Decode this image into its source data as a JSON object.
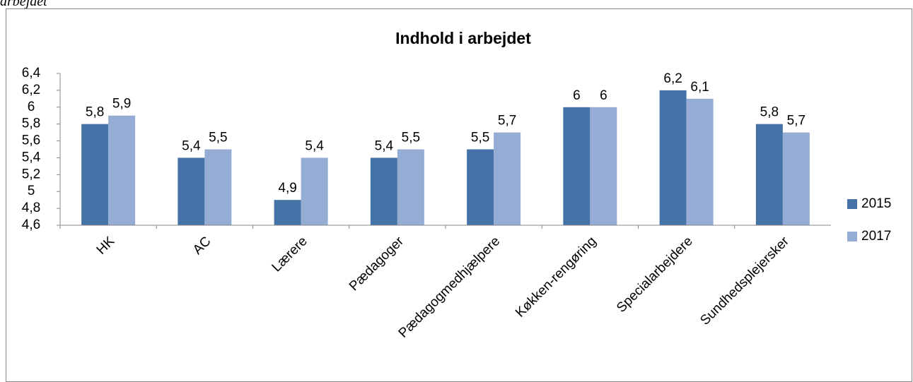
{
  "caption": "arbejdet",
  "chart_data": {
    "type": "bar",
    "title": "Indhold i arbejdet",
    "categories": [
      "HK",
      "AC",
      "Lærere",
      "Pædagoger",
      "Pædagogmedhjælpere",
      "Køkken-rengøring",
      "Specialarbejdere",
      "Sundhedsplejersker"
    ],
    "series": [
      {
        "name": "2015",
        "color": "#4572a7",
        "values": [
          5.8,
          5.4,
          4.9,
          5.4,
          5.5,
          6,
          6.2,
          5.8
        ],
        "value_labels": [
          "5,8",
          "5,4",
          "4,9",
          "5,4",
          "5,5",
          "6",
          "6,2",
          "5,8"
        ]
      },
      {
        "name": "2017",
        "color": "#95add5",
        "values": [
          5.9,
          5.5,
          5.4,
          5.5,
          5.7,
          6,
          6.1,
          5.7
        ],
        "value_labels": [
          "5,9",
          "5,5",
          "5,4",
          "5,5",
          "5,7",
          "6",
          "6,1",
          "5,7"
        ]
      }
    ],
    "ylim": [
      4.6,
      6.4
    ],
    "yticks": [
      {
        "value": 4.6,
        "label": "4,6"
      },
      {
        "value": 4.8,
        "label": "4,8"
      },
      5,
      {
        "value": 5.2,
        "label": "5,2"
      },
      {
        "value": 5.4,
        "label": "5,4"
      },
      {
        "value": 5.6,
        "label": "5,6"
      },
      {
        "value": 5.8,
        "label": "5,8"
      },
      6,
      {
        "value": 6.2,
        "label": "6,2"
      },
      {
        "value": 6.4,
        "label": "6,4"
      }
    ],
    "grid": false,
    "legend": "right"
  }
}
